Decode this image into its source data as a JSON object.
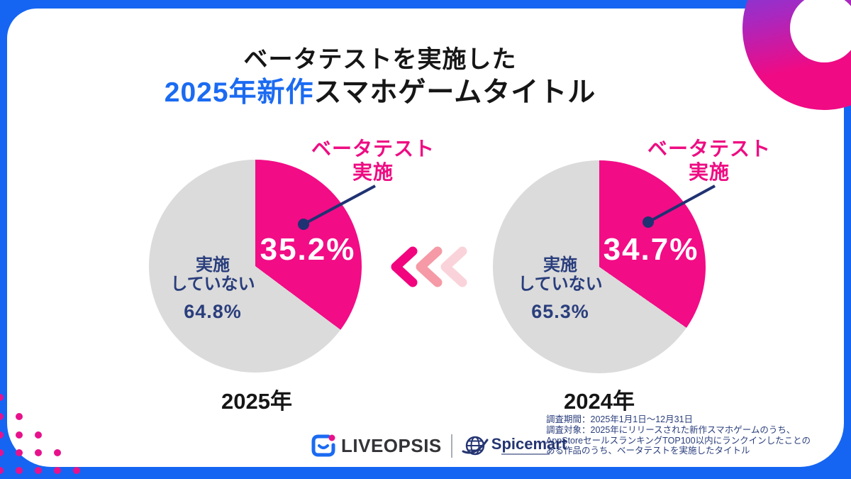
{
  "title": {
    "line1": "ベータテストを実施した",
    "line2_highlight": "2025年新作",
    "line2_rest": "スマホゲームタイトル"
  },
  "charts": [
    {
      "year_label": "2025年",
      "callout_label": "ベータテスト\n実施",
      "implemented_value": "35.2%",
      "not_implemented_label": "実施\nしていない",
      "not_implemented_value": "64.8%"
    },
    {
      "year_label": "2024年",
      "callout_label": "ベータテスト\n実施",
      "implemented_value": "34.7%",
      "not_implemented_label": "実施\nしていない",
      "not_implemented_value": "65.3%"
    }
  ],
  "chart_data": [
    {
      "type": "pie",
      "title": "2025年",
      "labels": [
        "ベータテスト実施",
        "実施していない"
      ],
      "values": [
        35.2,
        64.8
      ],
      "colors": [
        "#F20C86",
        "#DBDBDB"
      ],
      "start_angle": "12 o'clock, clockwise"
    },
    {
      "type": "pie",
      "title": "2024年",
      "labels": [
        "ベータテスト実施",
        "実施していない"
      ],
      "values": [
        34.7,
        65.3
      ],
      "colors": [
        "#F20C86",
        "#DBDBDB"
      ],
      "start_angle": "12 o'clock, clockwise"
    }
  ],
  "footnote": "調査期間：2025年1月1日～12月31日\n調査対象：2025年にリリースされた新作スマホゲームのうち、\nAppStoreセールスランキングTOP100以内にランクインしたことの\nある作品のうち、ベータテストを実施したタイトル",
  "footer": {
    "liveopsis_label": "LIVEOPSIS",
    "spicemart_label": "Spicemart"
  },
  "colors": {
    "frame_blue": "#1565F2",
    "title_blue": "#1B6BF2",
    "pink": "#F20C86",
    "gray": "#DBDBDB",
    "navy": "#2A3E7C",
    "chevron_1": "#F2047E",
    "chevron_2": "#F59AA6",
    "chevron_3": "#FAD3DA",
    "dot_pink": "#E8118C"
  }
}
